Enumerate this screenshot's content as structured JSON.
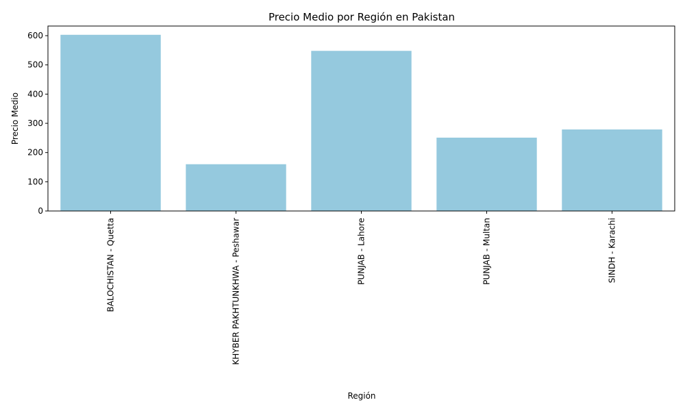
{
  "chart_data": {
    "type": "bar",
    "title": "Precio Medio por Región en Pakistan",
    "xlabel": "Región",
    "ylabel": "Precio Medio",
    "categories": [
      "BALOCHISTAN - Quetta",
      "KHYBER PAKHTUNKHWA - Peshawar",
      "PUNJAB - Lahore",
      "PUNJAB - Multan",
      "SINDH - Karachi"
    ],
    "values": [
      603,
      160,
      548,
      251,
      279
    ],
    "ylim": [
      0,
      633
    ],
    "yticks": [
      0,
      100,
      200,
      300,
      400,
      500,
      600
    ],
    "grid": false,
    "bar_color": "#95c9de"
  }
}
